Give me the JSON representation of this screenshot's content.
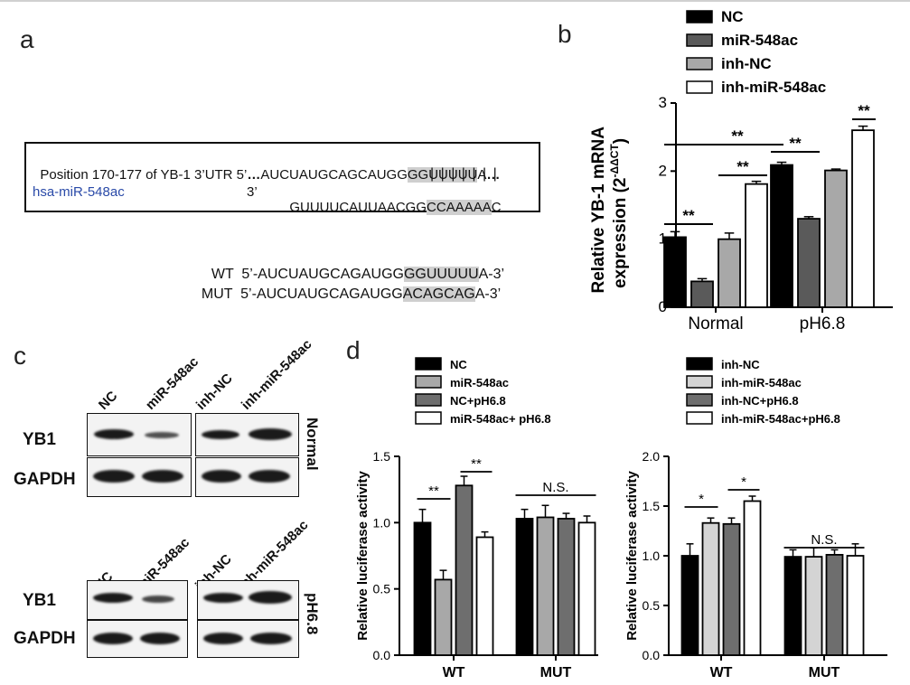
{
  "panels": {
    "a": "a",
    "b": "b",
    "c": "c",
    "d": "d"
  },
  "panel_a": {
    "box_line1": {
      "prefix": "Position 170-177 of YB-1 3’UTR 5’",
      "dots": "…",
      "seq_pre": "AUCUAUGCAGCAUGG",
      "seq_hl": "GGUUUUU",
      "seq_post": "A",
      "tail": "…"
    },
    "bonds": "| | | | | | |",
    "box_line2": {
      "name": "hsa-miR-548ac",
      "end": "3’",
      "seq_pre": "GUUUUCAUUAACGG",
      "seq_hl": "CCAAAAA",
      "seq_post": "C"
    },
    "wt": {
      "label": "WT",
      "pre": "5’-AUCUAUGCAGAUGG",
      "hl": "GGUUUUU",
      "post": "A-3’"
    },
    "mut": {
      "label": "MUT",
      "pre": "5’-AUCUAUGCAGAUGG",
      "hl": "ACAGCAG",
      "post": "A-3’"
    },
    "name_color": "#2a4aa8"
  },
  "panel_b": {
    "legend": [
      "NC",
      "miR-548ac",
      "inh-NC",
      "inh-miR-548ac"
    ],
    "ylabel_line1": "Relative YB-1 mRNA",
    "ylabel_line2": "expression (2",
    "ylabel_sup": "-ΔΔCT",
    "ylabel_close": ")",
    "sig": "**"
  },
  "panel_c": {
    "lanes_left": [
      "NC",
      "miR-548ac"
    ],
    "lanes_right": [
      "inh-NC",
      "inh-miR-548ac"
    ],
    "rows": [
      "YB1",
      "GAPDH"
    ],
    "cond_top": "Normal",
    "cond_bottom": "pH6.8"
  },
  "panel_d": {
    "legend_left": [
      "NC",
      "miR-548ac",
      "NC+pH6.8",
      "miR-548ac+ pH6.8"
    ],
    "legend_right": [
      "inh-NC",
      "inh-miR-548ac",
      "inh-NC+pH6.8",
      "inh-miR-548ac+pH6.8"
    ],
    "ylabel": "Relative luciferase activity",
    "ns": "N.S.",
    "sig_left": "**",
    "sig_right": "*"
  },
  "chart_data": [
    {
      "type": "bar",
      "categories": [
        "Normal",
        "pH6.8"
      ],
      "series": [
        {
          "name": "NC",
          "values": [
            1.03,
            2.09
          ],
          "errors": [
            0.08,
            0.04
          ],
          "color": "#000000"
        },
        {
          "name": "miR-548ac",
          "values": [
            0.38,
            1.3
          ],
          "errors": [
            0.04,
            0.03
          ],
          "color": "#5a5a5a"
        },
        {
          "name": "inh-NC",
          "values": [
            1.0,
            2.01
          ],
          "errors": [
            0.09,
            0.02
          ],
          "color": "#a8a8a8"
        },
        {
          "name": "inh-miR-548ac",
          "values": [
            1.81,
            2.6
          ],
          "errors": [
            0.04,
            0.06
          ],
          "color": "#ffffff"
        }
      ],
      "ylim": [
        0,
        3
      ],
      "yticks": [
        "0",
        "1",
        "2",
        "3"
      ],
      "ylabel": "Relative YB-1 mRNA expression (2-ΔΔCT)"
    },
    {
      "type": "bar",
      "categories": [
        "WT",
        "MUT"
      ],
      "series": [
        {
          "name": "NC",
          "values": [
            1.0,
            1.03
          ],
          "errors": [
            0.1,
            0.07
          ],
          "color": "#000000"
        },
        {
          "name": "miR-548ac",
          "values": [
            0.57,
            1.04
          ],
          "errors": [
            0.07,
            0.09
          ],
          "color": "#a8a8a8"
        },
        {
          "name": "NC+pH6.8",
          "values": [
            1.28,
            1.03
          ],
          "errors": [
            0.07,
            0.04
          ],
          "color": "#6e6e6e"
        },
        {
          "name": "miR-548ac+ pH6.8",
          "values": [
            0.89,
            1.0
          ],
          "errors": [
            0.04,
            0.05
          ],
          "color": "#ffffff"
        }
      ],
      "ylim": [
        0,
        1.5
      ],
      "yticks": [
        "0.0",
        "0.5",
        "1.0",
        "1.5"
      ],
      "ylabel": "Relative luciferase activity"
    },
    {
      "type": "bar",
      "categories": [
        "WT",
        "MUT"
      ],
      "series": [
        {
          "name": "inh-NC",
          "values": [
            1.0,
            0.99
          ],
          "errors": [
            0.12,
            0.07
          ],
          "color": "#000000"
        },
        {
          "name": "inh-miR-548ac",
          "values": [
            1.33,
            0.99
          ],
          "errors": [
            0.05,
            0.09
          ],
          "color": "#d4d4d4"
        },
        {
          "name": "inh-NC+pH6.8",
          "values": [
            1.32,
            1.01
          ],
          "errors": [
            0.06,
            0.05
          ],
          "color": "#6e6e6e"
        },
        {
          "name": "inh-miR-548ac+pH6.8",
          "values": [
            1.55,
            1.0
          ],
          "errors": [
            0.05,
            0.12
          ],
          "color": "#ffffff"
        }
      ],
      "ylim": [
        0,
        2.0
      ],
      "yticks": [
        "0.0",
        "0.5",
        "1.0",
        "1.5",
        "2.0"
      ],
      "ylabel": "Relative luciferase activity"
    }
  ]
}
